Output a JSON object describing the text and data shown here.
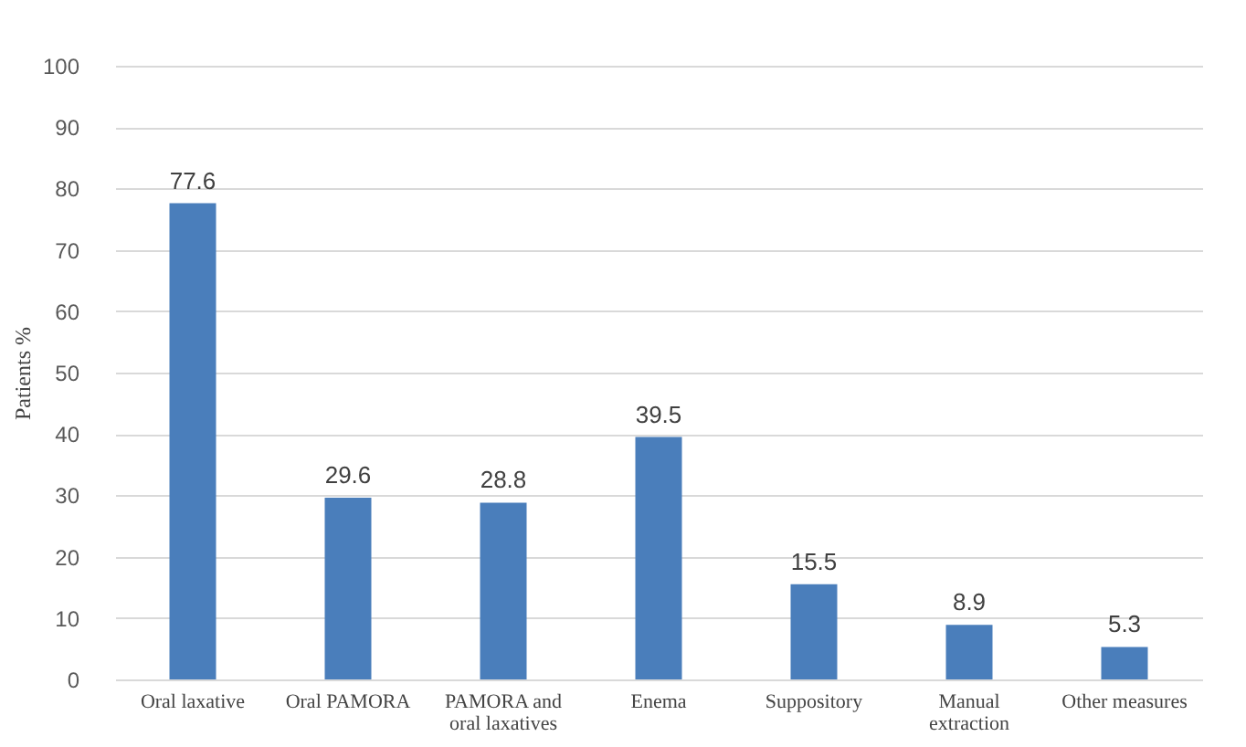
{
  "chart_data": {
    "type": "bar",
    "ylabel": "Patients %",
    "categories": [
      "Oral laxative",
      "Oral PAMORA",
      "PAMORA and\noral laxatives",
      "Enema",
      "Suppository",
      "Manual\nextraction",
      "Other measures"
    ],
    "values": [
      77.6,
      29.6,
      28.8,
      39.5,
      15.5,
      8.9,
      5.3
    ],
    "color": "#4a7ebb",
    "ylim": [
      0,
      100
    ],
    "yticks": [
      0,
      10,
      20,
      30,
      40,
      50,
      60,
      70,
      80,
      90,
      100
    ],
    "grid": "y",
    "data_labels": true
  }
}
